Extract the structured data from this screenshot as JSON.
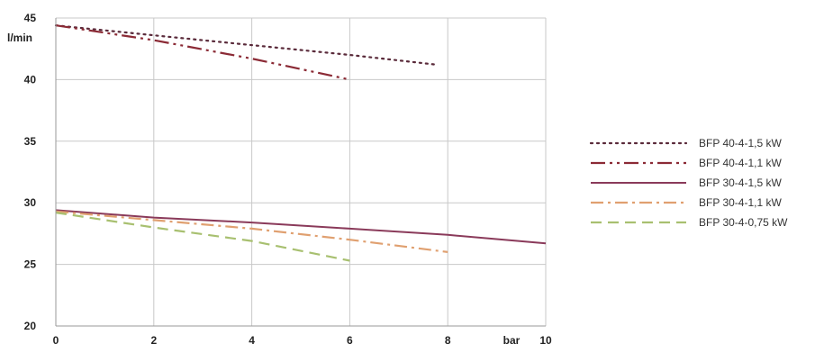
{
  "chart_data": {
    "type": "line",
    "title": "",
    "xlabel": "bar",
    "ylabel": "l/min",
    "xlim": [
      0,
      10
    ],
    "ylim": [
      20,
      45
    ],
    "x_ticks": [
      0,
      2,
      4,
      6,
      8,
      10
    ],
    "y_ticks": [
      20,
      25,
      30,
      35,
      40,
      45
    ],
    "grid": true,
    "legend_position": "right",
    "series": [
      {
        "name": "BFP 40-4-1,5 kW",
        "color": "#5a2a3a",
        "dash": "dotted",
        "points": [
          [
            0,
            44.4
          ],
          [
            2,
            43.6
          ],
          [
            4,
            42.8
          ],
          [
            6,
            42.0
          ],
          [
            7.8,
            41.2
          ]
        ]
      },
      {
        "name": "BFP 40-4-1,1 kW",
        "color": "#8b2a35",
        "dash": "dash-dot-dot",
        "points": [
          [
            0,
            44.4
          ],
          [
            2,
            43.2
          ],
          [
            4,
            41.7
          ],
          [
            6,
            40.0
          ]
        ]
      },
      {
        "name": "BFP 30-4-1,5 kW",
        "color": "#8a3a5a",
        "dash": "solid",
        "points": [
          [
            0,
            29.4
          ],
          [
            2,
            28.8
          ],
          [
            4,
            28.4
          ],
          [
            6,
            27.9
          ],
          [
            8,
            27.4
          ],
          [
            10,
            26.7
          ]
        ]
      },
      {
        "name": "BFP 30-4-1,1 kW",
        "color": "#e0a070",
        "dash": "dash-dot",
        "points": [
          [
            0,
            29.3
          ],
          [
            2,
            28.6
          ],
          [
            4,
            27.9
          ],
          [
            6,
            27.0
          ],
          [
            8,
            26.0
          ]
        ]
      },
      {
        "name": "BFP 30-4-0,75 kW",
        "color": "#a8c070",
        "dash": "dashed",
        "points": [
          [
            0,
            29.2
          ],
          [
            2,
            28.0
          ],
          [
            4,
            26.9
          ],
          [
            6,
            25.3
          ]
        ]
      }
    ]
  }
}
